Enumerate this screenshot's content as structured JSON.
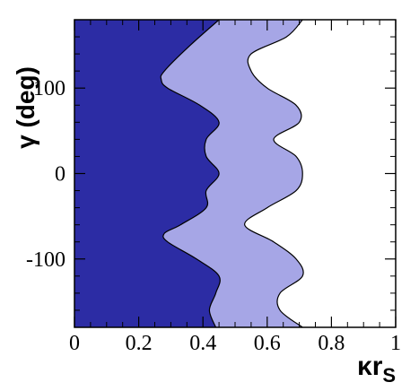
{
  "chart_data": {
    "type": "area",
    "xlabel": "κr",
    "xlabel_subscript": "S",
    "ylabel": "γ (deg)",
    "xlim": [
      0,
      1
    ],
    "ylim": [
      -180,
      180
    ],
    "x_ticks": [
      0,
      0.2,
      0.4,
      0.6,
      0.8,
      1
    ],
    "x_tick_labels": [
      "0",
      "0.2",
      "0.4",
      "0.6",
      "0.8",
      "1"
    ],
    "y_ticks": [
      -100,
      0,
      100
    ],
    "y_tick_labels": [
      "-100",
      "0",
      "100"
    ],
    "grid": false,
    "legend": "none",
    "colors": {
      "inner_region": "#2c2ca4",
      "outer_region": "#a6a6e6",
      "boundary": "#000000",
      "frame": "#000000"
    },
    "series": [
      {
        "region": "inner",
        "boundary": [
          {
            "gamma": 180,
            "x": 0.45
          },
          {
            "gamma": 150,
            "x": 0.36
          },
          {
            "gamma": 120,
            "x": 0.28
          },
          {
            "gamma": 110,
            "x": 0.27
          },
          {
            "gamma": 100,
            "x": 0.29
          },
          {
            "gamma": 80,
            "x": 0.39
          },
          {
            "gamma": 60,
            "x": 0.45
          },
          {
            "gamma": 40,
            "x": 0.41
          },
          {
            "gamma": 20,
            "x": 0.41
          },
          {
            "gamma": 0,
            "x": 0.45
          },
          {
            "gamma": -20,
            "x": 0.41
          },
          {
            "gamma": -40,
            "x": 0.41
          },
          {
            "gamma": -60,
            "x": 0.33
          },
          {
            "gamma": -70,
            "x": 0.28
          },
          {
            "gamma": -80,
            "x": 0.29
          },
          {
            "gamma": -100,
            "x": 0.38
          },
          {
            "gamma": -120,
            "x": 0.45
          },
          {
            "gamma": -140,
            "x": 0.44
          },
          {
            "gamma": -160,
            "x": 0.42
          },
          {
            "gamma": -180,
            "x": 0.44
          }
        ]
      },
      {
        "region": "outer",
        "boundary": [
          {
            "gamma": 180,
            "x": 0.71
          },
          {
            "gamma": 160,
            "x": 0.66
          },
          {
            "gamma": 140,
            "x": 0.55
          },
          {
            "gamma": 120,
            "x": 0.55
          },
          {
            "gamma": 100,
            "x": 0.6
          },
          {
            "gamma": 80,
            "x": 0.69
          },
          {
            "gamma": 60,
            "x": 0.7
          },
          {
            "gamma": 40,
            "x": 0.62
          },
          {
            "gamma": 20,
            "x": 0.69
          },
          {
            "gamma": 0,
            "x": 0.71
          },
          {
            "gamma": -20,
            "x": 0.69
          },
          {
            "gamma": -40,
            "x": 0.6
          },
          {
            "gamma": -60,
            "x": 0.53
          },
          {
            "gamma": -80,
            "x": 0.62
          },
          {
            "gamma": -100,
            "x": 0.69
          },
          {
            "gamma": -120,
            "x": 0.71
          },
          {
            "gamma": -140,
            "x": 0.64
          },
          {
            "gamma": -160,
            "x": 0.64
          },
          {
            "gamma": -180,
            "x": 0.71
          }
        ]
      }
    ]
  }
}
